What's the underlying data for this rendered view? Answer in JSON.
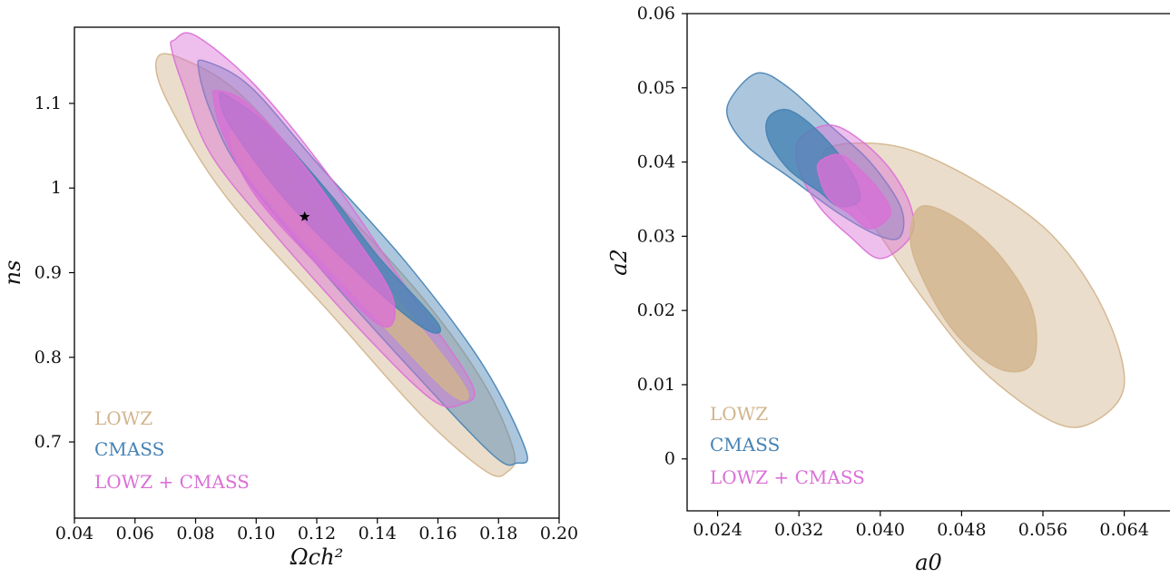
{
  "colors": {
    "lowz": "#d2b48c",
    "cmass": "#4682b4",
    "combined": "#da70d6"
  },
  "chart_data": [
    {
      "type": "contour",
      "xlabel": "Ωch²",
      "ylabel": "ns",
      "xlim": [
        0.04,
        0.2
      ],
      "ylim": [
        0.61,
        1.19
      ],
      "xticks": [
        0.04,
        0.06,
        0.08,
        0.1,
        0.12,
        0.14,
        0.16,
        0.18,
        0.2
      ],
      "xtick_labels": [
        "0.04",
        "0.06",
        "0.08",
        "0.10",
        "0.12",
        "0.14",
        "0.16",
        "0.18",
        "0.20"
      ],
      "yticks": [
        0.7,
        0.8,
        0.9,
        1.0,
        1.1
      ],
      "ytick_labels": [
        "0.7",
        "0.8",
        "0.9",
        "1",
        "1.1"
      ],
      "marker": {
        "x": 0.116,
        "y": 0.966,
        "symbol": "star"
      },
      "legend": [
        "LOWZ",
        "CMASS",
        "LOWZ + CMASS"
      ],
      "legend_position": "lower-left",
      "series": [
        {
          "name": "LOWZ",
          "color_key": "lowz",
          "contours": [
            {
              "level": "95%",
              "points": [
                [
                  0.074,
                  1.155
                ],
                [
                  0.095,
                  1.11
                ],
                [
                  0.125,
                  0.99
                ],
                [
                  0.155,
                  0.87
                ],
                [
                  0.175,
                  0.77
                ],
                [
                  0.185,
                  0.69
                ],
                [
                  0.183,
                  0.665
                ],
                [
                  0.176,
                  0.665
                ],
                [
                  0.155,
                  0.73
                ],
                [
                  0.125,
                  0.85
                ],
                [
                  0.09,
                  0.99
                ],
                [
                  0.071,
                  1.1
                ],
                [
                  0.067,
                  1.15
                ]
              ]
            },
            {
              "level": "68%",
              "points": [
                [
                  0.095,
                  1.08
                ],
                [
                  0.112,
                  1.015
                ],
                [
                  0.137,
                  0.91
                ],
                [
                  0.162,
                  0.8
                ],
                [
                  0.17,
                  0.755
                ],
                [
                  0.163,
                  0.76
                ],
                [
                  0.14,
                  0.845
                ],
                [
                  0.11,
                  0.96
                ],
                [
                  0.093,
                  1.04
                ]
              ]
            }
          ]
        },
        {
          "name": "CMASS",
          "color_key": "cmass",
          "contours": [
            {
              "level": "95%",
              "points": [
                [
                  0.083,
                  1.15
                ],
                [
                  0.098,
                  1.12
                ],
                [
                  0.12,
                  1.03
                ],
                [
                  0.15,
                  0.91
                ],
                [
                  0.175,
                  0.79
                ],
                [
                  0.189,
                  0.69
                ],
                [
                  0.186,
                  0.675
                ],
                [
                  0.178,
                  0.685
                ],
                [
                  0.15,
                  0.79
                ],
                [
                  0.12,
                  0.91
                ],
                [
                  0.095,
                  1.02
                ],
                [
                  0.085,
                  1.09
                ],
                [
                  0.081,
                  1.14
                ]
              ]
            },
            {
              "level": "68%",
              "points": [
                [
                  0.09,
                  1.11
                ],
                [
                  0.105,
                  1.07
                ],
                [
                  0.125,
                  0.99
                ],
                [
                  0.14,
                  0.92
                ],
                [
                  0.16,
                  0.84
                ],
                [
                  0.155,
                  0.835
                ],
                [
                  0.135,
                  0.895
                ],
                [
                  0.11,
                  0.985
                ],
                [
                  0.092,
                  1.07
                ],
                [
                  0.088,
                  1.105
                ]
              ]
            }
          ]
        },
        {
          "name": "LOWZ + CMASS",
          "color_key": "combined",
          "contours": [
            {
              "level": "95%",
              "points": [
                [
                  0.073,
                  1.175
                ],
                [
                  0.08,
                  1.18
                ],
                [
                  0.1,
                  1.12
                ],
                [
                  0.125,
                  1.01
                ],
                [
                  0.15,
                  0.88
                ],
                [
                  0.171,
                  0.77
                ],
                [
                  0.168,
                  0.745
                ],
                [
                  0.158,
                  0.75
                ],
                [
                  0.135,
                  0.83
                ],
                [
                  0.105,
                  0.95
                ],
                [
                  0.085,
                  1.04
                ],
                [
                  0.076,
                  1.12
                ],
                [
                  0.072,
                  1.165
                ]
              ]
            },
            {
              "level": "68%",
              "points": [
                [
                  0.087,
                  1.115
                ],
                [
                  0.097,
                  1.1
                ],
                [
                  0.115,
                  1.03
                ],
                [
                  0.13,
                  0.955
                ],
                [
                  0.144,
                  0.88
                ],
                [
                  0.145,
                  0.84
                ],
                [
                  0.138,
                  0.845
                ],
                [
                  0.12,
                  0.91
                ],
                [
                  0.1,
                  0.99
                ],
                [
                  0.089,
                  1.065
                ],
                [
                  0.086,
                  1.105
                ]
              ]
            }
          ]
        }
      ]
    },
    {
      "type": "contour",
      "xlabel": "a0",
      "ylabel": "a2",
      "xlim": [
        0.021,
        0.0685
      ],
      "ylim": [
        -0.007,
        0.06
      ],
      "xticks": [
        0.024,
        0.032,
        0.04,
        0.048,
        0.056,
        0.064
      ],
      "xtick_labels": [
        "0.024",
        "0.032",
        "0.040",
        "0.048",
        "0.056",
        "0.064"
      ],
      "yticks": [
        0.0,
        0.01,
        0.02,
        0.03,
        0.04,
        0.05,
        0.06
      ],
      "ytick_labels": [
        "0",
        "0.01",
        "0.02",
        "0.03",
        "0.04",
        "0.05",
        "0.06"
      ],
      "legend": [
        "LOWZ",
        "CMASS",
        "LOWZ + CMASS"
      ],
      "legend_position": "lower-left",
      "series": [
        {
          "name": "LOWZ",
          "color_key": "lowz",
          "contours": [
            {
              "level": "95%",
              "points": [
                [
                  0.035,
                  0.042
                ],
                [
                  0.042,
                  0.042
                ],
                [
                  0.05,
                  0.037
                ],
                [
                  0.057,
                  0.03
                ],
                [
                  0.062,
                  0.02
                ],
                [
                  0.064,
                  0.01
                ],
                [
                  0.061,
                  0.005
                ],
                [
                  0.057,
                  0.005
                ],
                [
                  0.05,
                  0.012
                ],
                [
                  0.044,
                  0.022
                ],
                [
                  0.039,
                  0.032
                ],
                [
                  0.035,
                  0.038
                ]
              ]
            },
            {
              "level": "68%",
              "points": [
                [
                  0.044,
                  0.034
                ],
                [
                  0.048,
                  0.032
                ],
                [
                  0.052,
                  0.027
                ],
                [
                  0.055,
                  0.02
                ],
                [
                  0.055,
                  0.013
                ],
                [
                  0.052,
                  0.012
                ],
                [
                  0.048,
                  0.016
                ],
                [
                  0.045,
                  0.022
                ],
                [
                  0.043,
                  0.029
                ]
              ]
            }
          ]
        },
        {
          "name": "CMASS",
          "color_key": "cmass",
          "contours": [
            {
              "level": "95%",
              "points": [
                [
                  0.0255,
                  0.049
                ],
                [
                  0.028,
                  0.052
                ],
                [
                  0.031,
                  0.05
                ],
                [
                  0.035,
                  0.045
                ],
                [
                  0.039,
                  0.04
                ],
                [
                  0.042,
                  0.034
                ],
                [
                  0.042,
                  0.03
                ],
                [
                  0.04,
                  0.03
                ],
                [
                  0.036,
                  0.033
                ],
                [
                  0.031,
                  0.038
                ],
                [
                  0.027,
                  0.042
                ],
                [
                  0.025,
                  0.046
                ]
              ]
            },
            {
              "level": "68%",
              "points": [
                [
                  0.029,
                  0.046
                ],
                [
                  0.031,
                  0.047
                ],
                [
                  0.034,
                  0.044
                ],
                [
                  0.037,
                  0.039
                ],
                [
                  0.038,
                  0.035
                ],
                [
                  0.036,
                  0.034
                ],
                [
                  0.034,
                  0.036
                ],
                [
                  0.031,
                  0.039
                ],
                [
                  0.029,
                  0.043
                ]
              ]
            }
          ]
        },
        {
          "name": "LOWZ + CMASS",
          "color_key": "combined",
          "contours": [
            {
              "level": "95%",
              "points": [
                [
                  0.032,
                  0.043
                ],
                [
                  0.035,
                  0.045
                ],
                [
                  0.038,
                  0.043
                ],
                [
                  0.041,
                  0.039
                ],
                [
                  0.043,
                  0.034
                ],
                [
                  0.043,
                  0.03
                ],
                [
                  0.04,
                  0.027
                ],
                [
                  0.037,
                  0.03
                ],
                [
                  0.034,
                  0.034
                ],
                [
                  0.032,
                  0.039
                ]
              ]
            },
            {
              "level": "68%",
              "points": [
                [
                  0.034,
                  0.04
                ],
                [
                  0.036,
                  0.041
                ],
                [
                  0.038,
                  0.039
                ],
                [
                  0.04,
                  0.036
                ],
                [
                  0.041,
                  0.033
                ],
                [
                  0.039,
                  0.031
                ],
                [
                  0.037,
                  0.033
                ],
                [
                  0.035,
                  0.035
                ],
                [
                  0.034,
                  0.038
                ]
              ]
            }
          ]
        }
      ]
    }
  ]
}
